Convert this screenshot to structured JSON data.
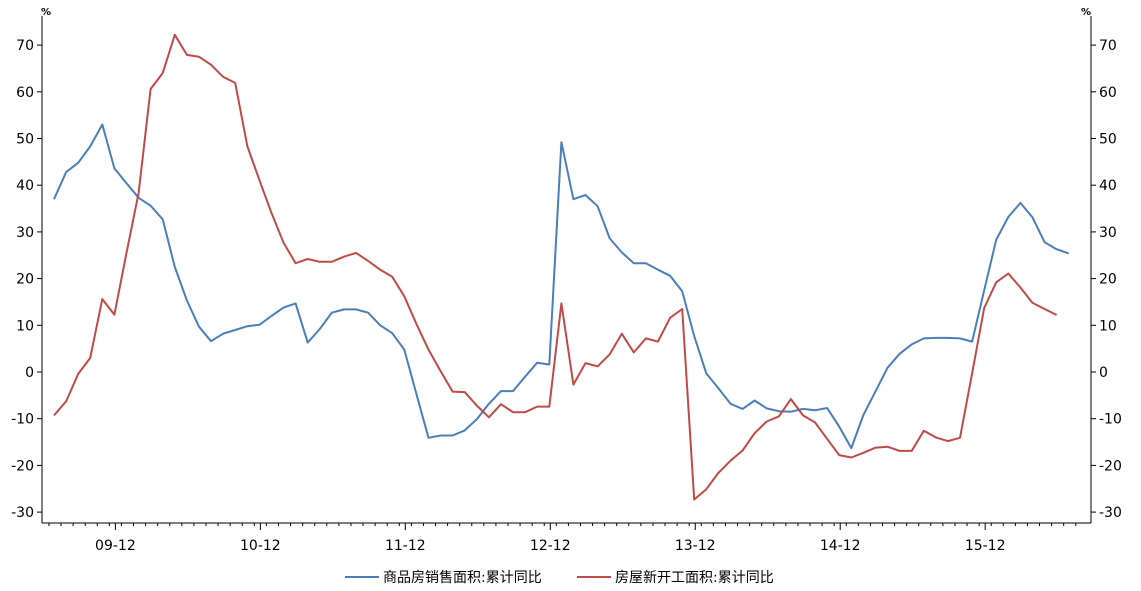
{
  "chart_data": {
    "type": "line",
    "y_unit_left": "%",
    "y_unit_right": "%",
    "ylim": [
      -30,
      75
    ],
    "y_ticks": [
      -30,
      -20,
      -10,
      0,
      10,
      20,
      30,
      40,
      50,
      60,
      70
    ],
    "x_tick_labels": [
      "09-12",
      "10-12",
      "11-12",
      "12-12",
      "13-12",
      "14-12",
      "15-12"
    ],
    "x_tick_index": [
      5,
      17,
      29,
      41,
      53,
      65,
      77
    ],
    "colors": {
      "series1": "#4a7ebb",
      "series2": "#be4b48"
    },
    "series": [
      {
        "name": "商品房销售面积:累计同比",
        "color": "#4a7ebb",
        "values": [
          37,
          42.8,
          44.8,
          48.3,
          53,
          43.6,
          40.4,
          37.3,
          35.6,
          32.7,
          22.5,
          15.3,
          9.7,
          6.6,
          8.2,
          9,
          9.8,
          10.1,
          12,
          13.8,
          14.7,
          6.3,
          9.2,
          12.7,
          13.4,
          13.4,
          12.7,
          10,
          8.3,
          4.8,
          -4.7,
          -14.1,
          -13.6,
          -13.6,
          -12.5,
          -10.1,
          -6.8,
          -4.1,
          -4.1,
          -1,
          2,
          1.6,
          49.2,
          37,
          37.9,
          35.5,
          28.6,
          25.6,
          23.3,
          23.3,
          21.9,
          20.6,
          17.3,
          7.7,
          -0.3,
          -3.5,
          -6.8,
          -7.9,
          -6.1,
          -7.8,
          -8.4,
          -8.5,
          -7.9,
          -8.2,
          -7.7,
          -11.7,
          -16.3,
          -9.2,
          -4.2,
          0.9,
          3.9,
          5.9,
          7.2,
          7.3,
          7.3,
          7.2,
          6.5,
          17.5,
          28.3,
          33.2,
          36.2,
          33.1,
          27.8,
          26.3,
          25.4
        ]
      },
      {
        "name": "房屋新开工面积:累计同比",
        "color": "#be4b48",
        "values": [
          -9.3,
          -6.3,
          -0.4,
          3,
          15.6,
          12.3,
          25.5,
          38.3,
          60.6,
          64,
          72.2,
          67.9,
          67.5,
          65.8,
          63.2,
          61.9,
          48.4,
          41.1,
          34.1,
          27.7,
          23.3,
          24.2,
          23.6,
          23.6,
          24.7,
          25.5,
          23.8,
          21.9,
          20.4,
          16.2,
          10.3,
          4.8,
          0.2,
          -4.2,
          -4.3,
          -7.2,
          -9.7,
          -6.9,
          -8.6,
          -8.6,
          -7.4,
          -7.4,
          14.7,
          -2.7,
          1.9,
          1.2,
          3.8,
          8.2,
          4.2,
          7.2,
          6.5,
          11.6,
          13.5,
          -27.3,
          -25.1,
          -21.6,
          -19,
          -16.8,
          -13.1,
          -10.6,
          -9.5,
          -5.8,
          -9.3,
          -10.8,
          -14.3,
          -17.8,
          -18.3,
          -17.3,
          -16.2,
          -16,
          -16.9,
          -16.9,
          -12.6,
          -14,
          -14.8,
          -14.1,
          -0.3,
          13.7,
          19.2,
          21.1,
          18.1,
          14.8,
          13.5,
          12.2
        ]
      }
    ]
  }
}
